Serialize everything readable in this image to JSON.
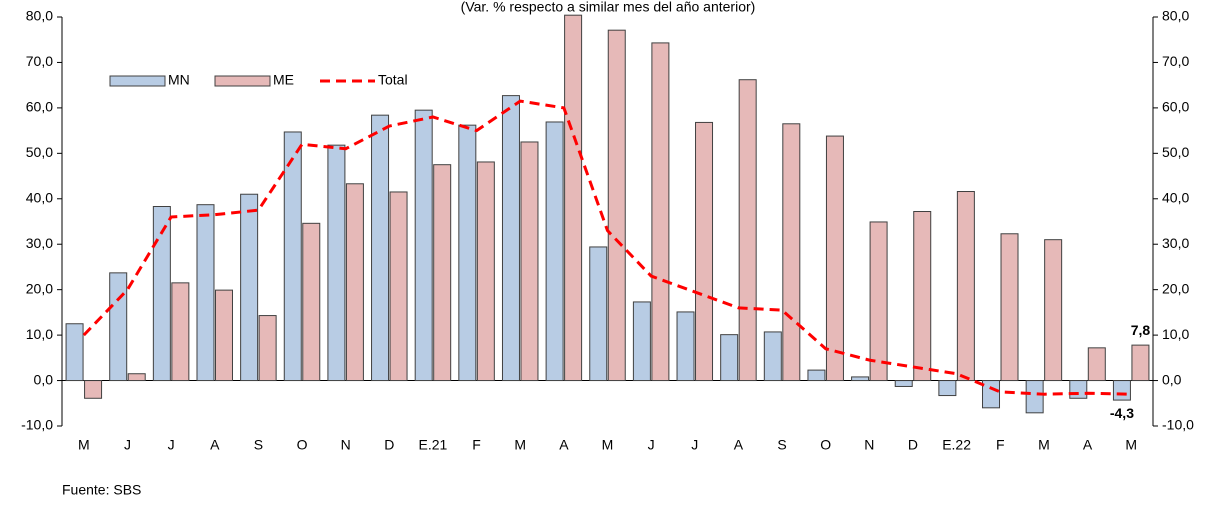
{
  "chart_data": {
    "type": "bar",
    "title": "(Var. % respecto a similar mes del año anterior)",
    "source": "Fuente: SBS",
    "categories": [
      "M",
      "J",
      "J",
      "A",
      "S",
      "O",
      "N",
      "D",
      "E.21",
      "F",
      "M",
      "A",
      "M",
      "J",
      "J",
      "A",
      "S",
      "O",
      "N",
      "D",
      "E.22",
      "F",
      "M",
      "A",
      "M"
    ],
    "series": [
      {
        "name": "MN",
        "type": "bar",
        "color": "#b8cce4",
        "values": [
          12.5,
          23.7,
          38.3,
          38.7,
          41.0,
          54.7,
          51.8,
          58.4,
          59.5,
          56.2,
          62.7,
          56.9,
          29.4,
          17.3,
          15.1,
          10.1,
          10.7,
          2.3,
          0.8,
          -1.3,
          -3.3,
          -6.0,
          -7.1,
          -3.9,
          -4.3
        ],
        "value_labels": [
          null,
          null,
          null,
          null,
          null,
          null,
          null,
          null,
          null,
          null,
          null,
          null,
          null,
          null,
          null,
          null,
          null,
          null,
          null,
          null,
          null,
          null,
          null,
          null,
          "-4,3"
        ]
      },
      {
        "name": "ME",
        "type": "bar",
        "color": "#e6b9b8",
        "values": [
          -3.9,
          1.5,
          21.5,
          19.9,
          14.3,
          34.6,
          43.3,
          41.5,
          47.5,
          48.1,
          52.5,
          80.4,
          77.1,
          74.3,
          56.8,
          66.2,
          56.5,
          53.8,
          34.9,
          37.2,
          41.6,
          32.3,
          31.0,
          7.2,
          7.8
        ],
        "value_labels": [
          null,
          null,
          null,
          null,
          null,
          null,
          null,
          null,
          null,
          null,
          null,
          null,
          null,
          null,
          null,
          null,
          null,
          null,
          null,
          null,
          null,
          null,
          null,
          null,
          "7,8"
        ]
      },
      {
        "name": "Total",
        "type": "line",
        "color": "#ff0000",
        "axis": "y2",
        "values": [
          10,
          20,
          36,
          36.5,
          37.5,
          52,
          51,
          56,
          58,
          55,
          61.5,
          60,
          33,
          23,
          19.5,
          16,
          15.5,
          7,
          4.5,
          3,
          1.5,
          -2.5,
          -3,
          -2.8,
          -3
        ]
      }
    ],
    "ylim": [
      -10,
      80
    ],
    "yticks": [
      {
        "value": -10,
        "label": "-10,0"
      },
      {
        "value": 0,
        "label": "0,0"
      },
      {
        "value": 10,
        "label": "10,0"
      },
      {
        "value": 20,
        "label": "20,0"
      },
      {
        "value": 30,
        "label": "30,0"
      },
      {
        "value": 40,
        "label": "40,0"
      },
      {
        "value": 50,
        "label": "50,0"
      },
      {
        "value": 60,
        "label": "60,0"
      },
      {
        "value": 70,
        "label": "70,0"
      },
      {
        "value": 80,
        "label": "80,0"
      }
    ],
    "y2lim": [
      -10,
      80
    ],
    "y2ticks": [
      {
        "value": -10,
        "label": "-10,0"
      },
      {
        "value": 0,
        "label": "0,0"
      },
      {
        "value": 10,
        "label": "10,0"
      },
      {
        "value": 20,
        "label": "20,0"
      },
      {
        "value": 30,
        "label": "30,0"
      },
      {
        "value": 40,
        "label": "40,0"
      },
      {
        "value": 50,
        "label": "50,0"
      },
      {
        "value": 60,
        "label": "60,0"
      },
      {
        "value": 70,
        "label": "70,0"
      },
      {
        "value": 80,
        "label": "80,0"
      }
    ],
    "legend": "upper left"
  }
}
